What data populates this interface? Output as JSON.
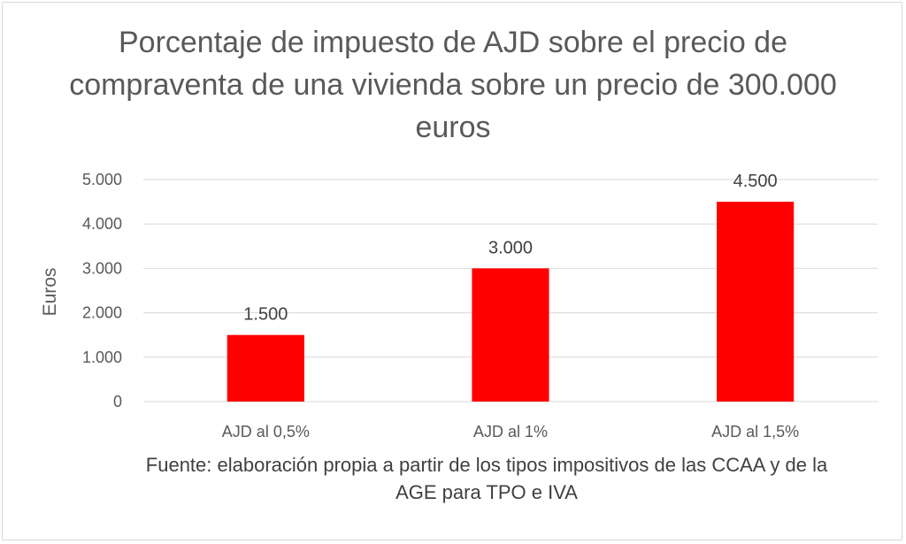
{
  "chart_data": {
    "type": "bar",
    "title": "Porcentaje de impuesto de AJD sobre el precio de compraventa de una vivienda sobre un precio de 300.000 euros",
    "ylabel": "Euros",
    "xlabel": "",
    "categories": [
      "AJD al 0,5%",
      "AJD al 1%",
      "AJD al 1,5%"
    ],
    "values": [
      1500,
      3000,
      4500
    ],
    "value_labels": [
      "1.500",
      "3.000",
      "4.500"
    ],
    "ylim": [
      0,
      5000
    ],
    "y_ticks": [
      0,
      1000,
      2000,
      3000,
      4000,
      5000
    ],
    "y_tick_labels": [
      "0",
      "1.000",
      "2.000",
      "3.000",
      "4.000",
      "5.000"
    ],
    "grid": true,
    "legend": "none",
    "bar_color": "#ff0000",
    "source_note": "Fuente: elaboración propia a partir de los tipos impositivos de las CCAA y de la AGE para TPO e IVA"
  }
}
